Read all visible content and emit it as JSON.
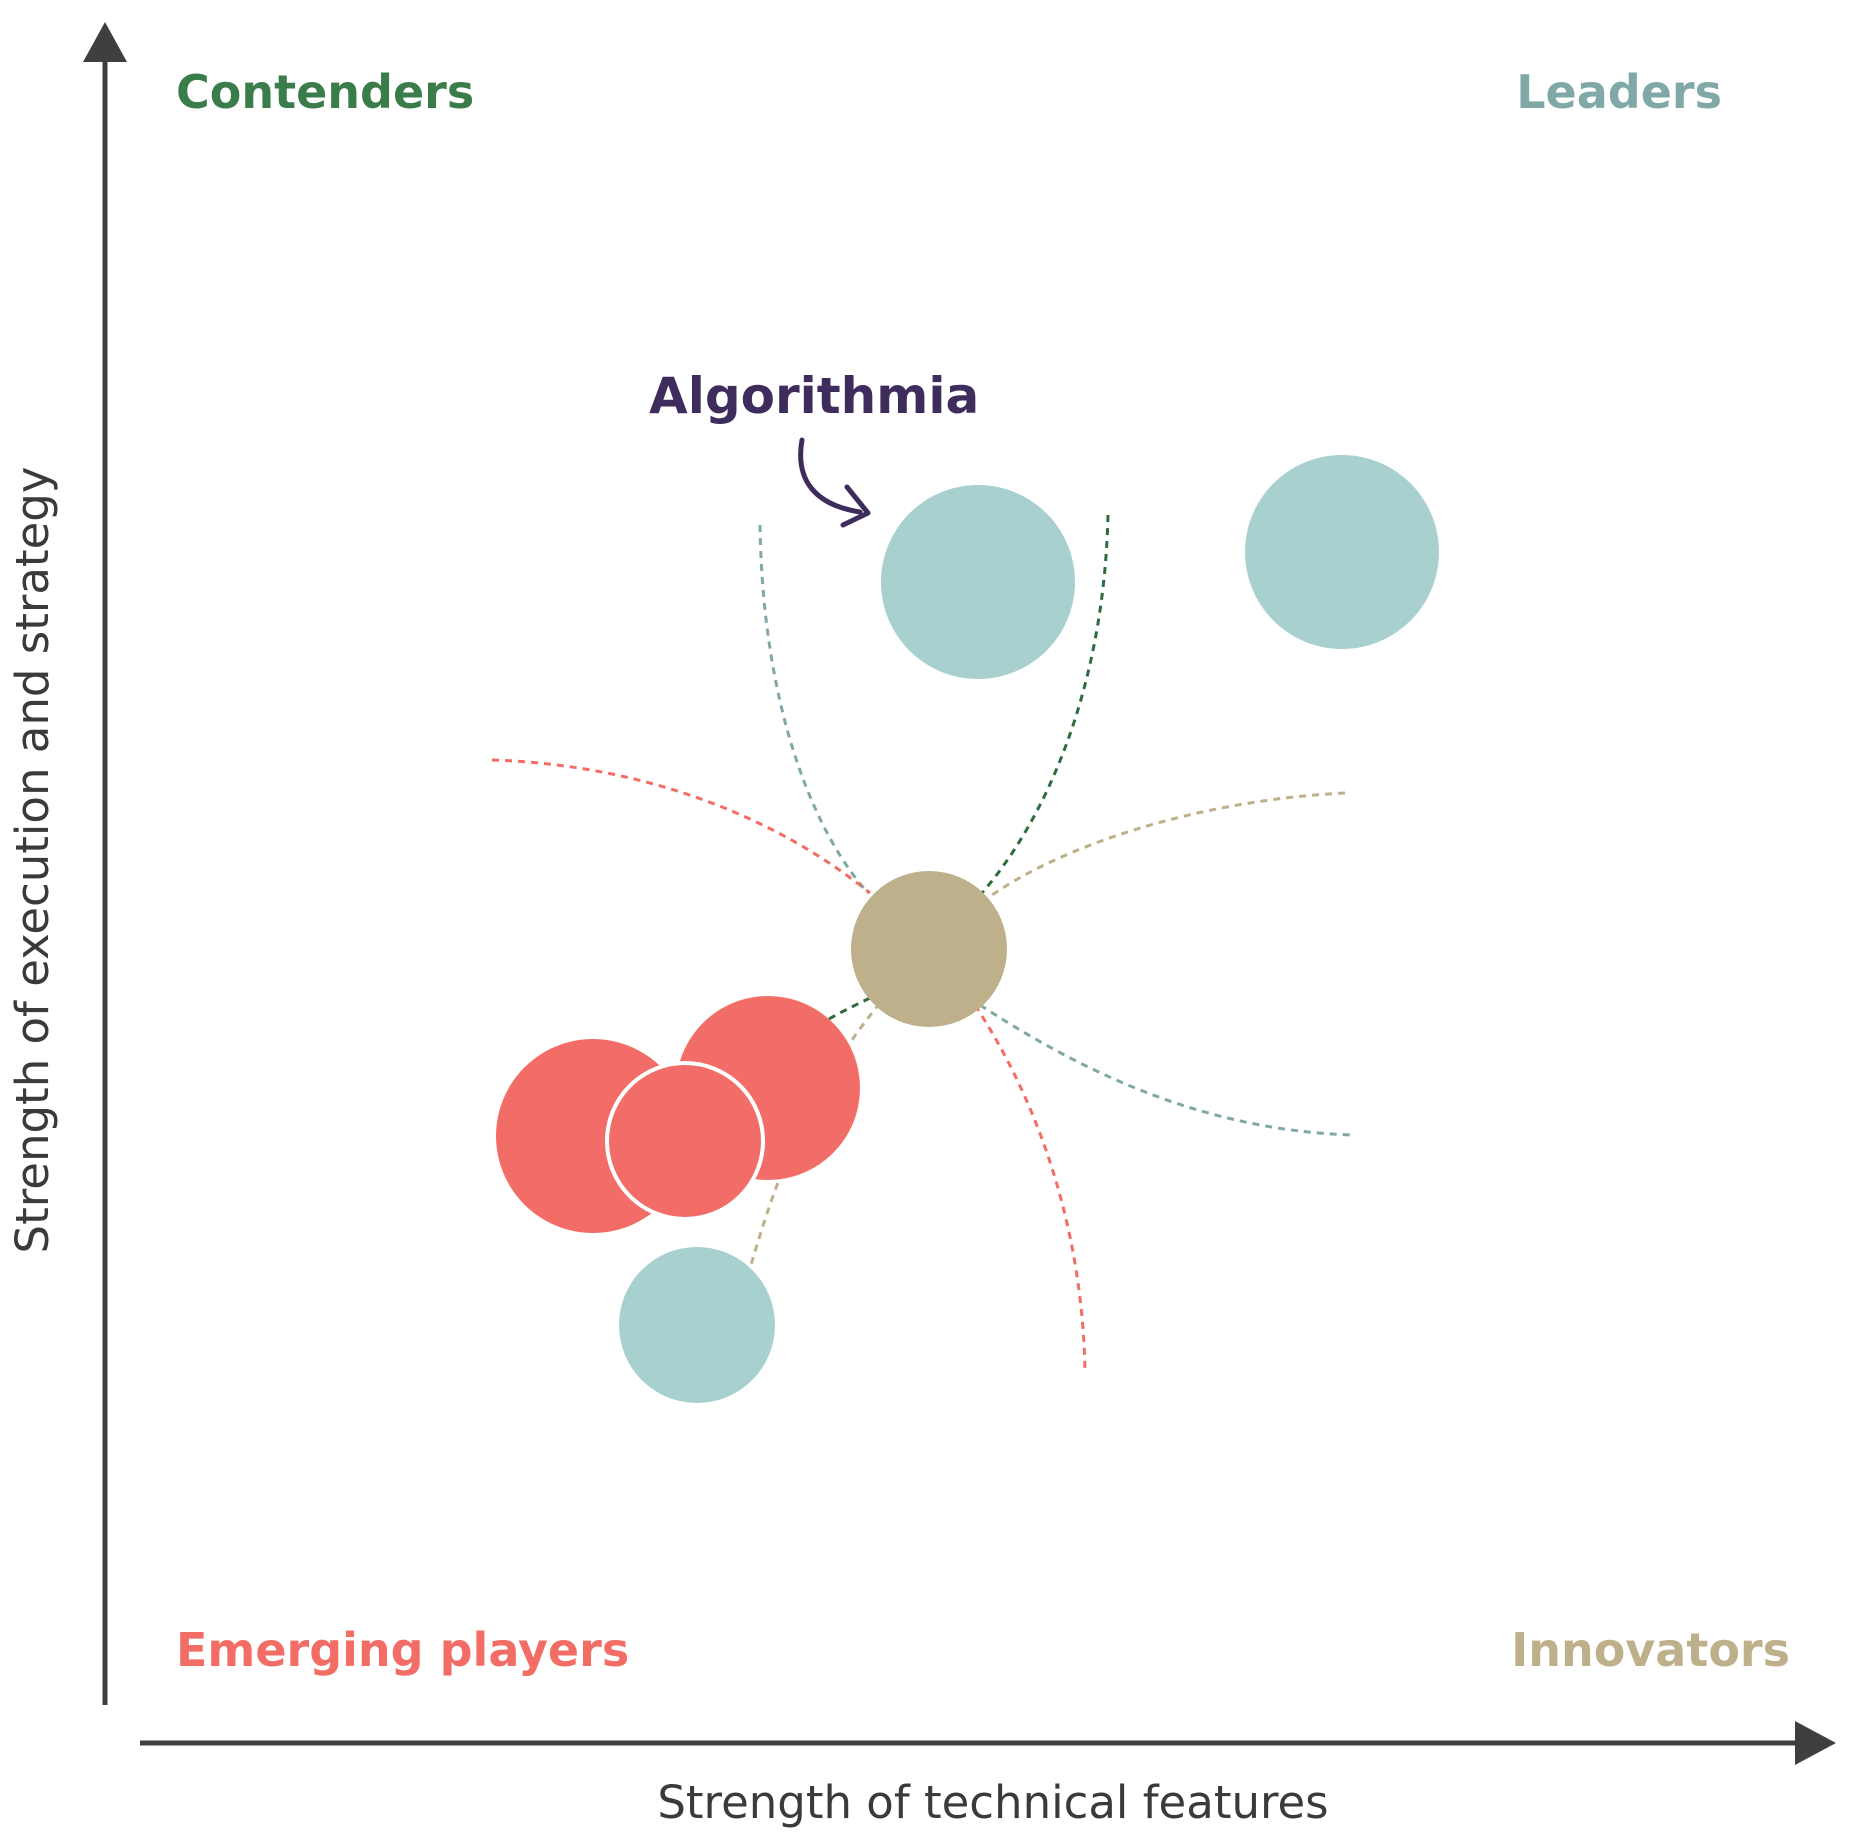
{
  "chart_data": {
    "type": "scatter",
    "title": "",
    "xlabel": "Strength of technical features",
    "ylabel": "Strength of execution and strategy",
    "quadrants": {
      "top_left": "Contenders",
      "top_right": "Leaders",
      "bottom_left": "Emerging players",
      "bottom_right": "Innovators"
    },
    "highlight": "Algorithmia",
    "colors": {
      "contenders": "#3a7d4a",
      "leaders": "#7fa8a6",
      "emerging": "#f26d66",
      "innovators": "#bdb08b",
      "bubble_teal": "#a8d0cf",
      "bubble_red": "#f26d68",
      "bubble_tan": "#bdb08b",
      "callout": "#3e2d5c",
      "axis": "#3f3f3f"
    }
  }
}
